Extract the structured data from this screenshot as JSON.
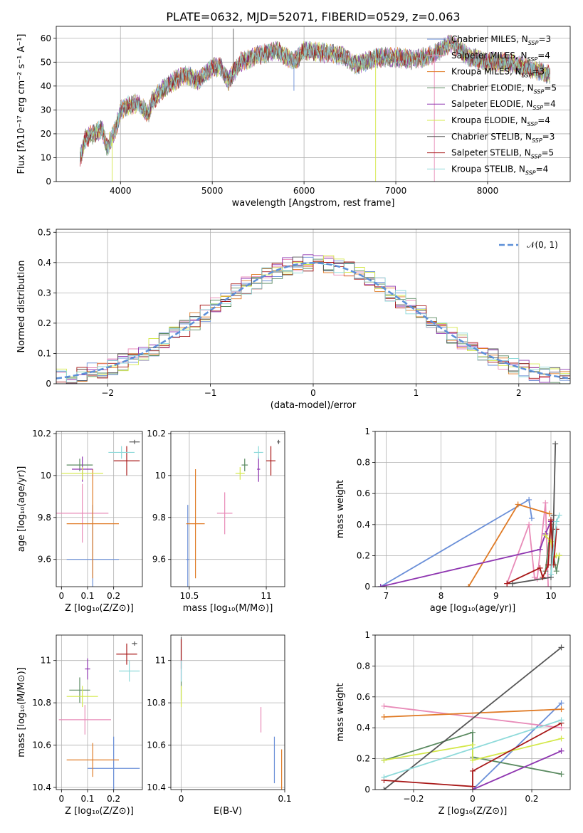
{
  "title": "PLATE=0632, MJD=52071, FIBERID=0529, z=0.063",
  "colors": [
    "#6a8fd8",
    "#e88bb8",
    "#e07b26",
    "#5a8a60",
    "#8e35b0",
    "#d4e84a",
    "#555555",
    "#a81717",
    "#8edada"
  ],
  "legend": [
    {
      "base": "Chabrier MILES, N",
      "sub": "SSP",
      "tail": "=3"
    },
    {
      "base": "Salpeter MILES, N",
      "sub": "SSP",
      "tail": "=4"
    },
    {
      "base": "Kroupa MILES, N",
      "sub": "SSP",
      "tail": "=3"
    },
    {
      "base": "Chabrier ELODIE, N",
      "sub": "SSP",
      "tail": "=5"
    },
    {
      "base": "Salpeter ELODIE, N",
      "sub": "SSP",
      "tail": "=4"
    },
    {
      "base": "Kroupa ELODIE, N",
      "sub": "SSP",
      "tail": "=4"
    },
    {
      "base": "Chabrier STELIB, N",
      "sub": "SSP",
      "tail": "=3"
    },
    {
      "base": "Salpeter STELIB, N",
      "sub": "SSP",
      "tail": "=5"
    },
    {
      "base": "Kroupa STELIB, N",
      "sub": "SSP",
      "tail": "=4"
    }
  ],
  "chart_data": [
    {
      "type": "line",
      "xlabel": "wavelength [Angstrom, rest frame]",
      "ylabel": "Flux [fλ10⁻¹⁷ erg cm⁻² s⁻¹ A⁻¹]",
      "xlim": [
        3300,
        8900
      ],
      "ylim": [
        0,
        65
      ],
      "xticks": [
        4000,
        5000,
        6000,
        7000,
        8000
      ],
      "yticks": [
        0,
        10,
        20,
        30,
        40,
        50,
        60
      ],
      "spectrum_anchor_points": [
        [
          3560,
          10
        ],
        [
          3620,
          18
        ],
        [
          3700,
          20
        ],
        [
          3800,
          22
        ],
        [
          3850,
          14
        ],
        [
          3900,
          18
        ],
        [
          3950,
          22
        ],
        [
          4000,
          30
        ],
        [
          4100,
          32
        ],
        [
          4200,
          33
        ],
        [
          4300,
          28
        ],
        [
          4350,
          34
        ],
        [
          4500,
          40
        ],
        [
          4700,
          45
        ],
        [
          4850,
          42
        ],
        [
          5000,
          48
        ],
        [
          5100,
          48
        ],
        [
          5175,
          42
        ],
        [
          5300,
          50
        ],
        [
          5500,
          53
        ],
        [
          5700,
          55
        ],
        [
          5890,
          50
        ],
        [
          6000,
          55
        ],
        [
          6200,
          54
        ],
        [
          6400,
          53
        ],
        [
          6563,
          49
        ],
        [
          6800,
          52
        ],
        [
          7000,
          52
        ],
        [
          7200,
          51
        ],
        [
          7400,
          53
        ],
        [
          7600,
          58
        ],
        [
          7800,
          52
        ],
        [
          8000,
          50
        ],
        [
          8200,
          50
        ],
        [
          8400,
          48
        ],
        [
          8680,
          45
        ]
      ],
      "series_count": 9
    },
    {
      "type": "area",
      "xlabel": "(data-model)/error",
      "ylabel": "Normed distribution",
      "xlim": [
        -2.5,
        2.5
      ],
      "ylim": [
        0,
        0.51
      ],
      "xticks": [
        -2,
        -1,
        0,
        1,
        2
      ],
      "yticks": [
        0.0,
        0.1,
        0.2,
        0.3,
        0.4,
        0.5
      ],
      "legend": "𝒩(0, 1)",
      "bin_width": 0.1,
      "series_count": 9
    },
    {
      "type": "scatter",
      "xlabel": "Z [log₁₀(Z/Z⊙)]",
      "ylabel": "age  [log₁₀(age/yr)]",
      "xlim": [
        -0.02,
        0.31
      ],
      "ylim": [
        9.47,
        10.21
      ],
      "xticks": [
        0.0,
        0.1,
        0.2
      ],
      "yticks": [
        9.6,
        9.8,
        10.0,
        10.2
      ],
      "points": [
        [
          0.12,
          9.6,
          0.1,
          0.26
        ],
        [
          0.08,
          9.82,
          0.1,
          0.14
        ],
        [
          0.12,
          9.77,
          0.1,
          0.26
        ],
        [
          0.07,
          10.05,
          0.05,
          0.03
        ],
        [
          0.08,
          10.03,
          0.04,
          0.06
        ],
        [
          0.08,
          10.01,
          0.08,
          0.03
        ],
        [
          0.28,
          10.16,
          0.02,
          0.01
        ],
        [
          0.25,
          10.07,
          0.05,
          0.07
        ],
        [
          0.23,
          10.11,
          0.05,
          0.03
        ]
      ]
    },
    {
      "type": "scatter",
      "xlabel": "mass [log₁₀(M/M⊙)]",
      "ylabel": "",
      "xlim": [
        10.38,
        11.12
      ],
      "ylim": [
        9.47,
        10.21
      ],
      "xticks": [
        10.5,
        11.0
      ],
      "yticks": [
        9.6,
        9.8,
        10.0,
        10.2
      ],
      "points": [
        [
          10.49,
          9.6,
          0.01,
          0.26
        ],
        [
          10.73,
          9.82,
          0.05,
          0.1
        ],
        [
          10.54,
          9.77,
          0.06,
          0.26
        ],
        [
          10.86,
          10.05,
          0.02,
          0.03
        ],
        [
          10.95,
          10.03,
          0.01,
          0.06
        ],
        [
          10.83,
          10.01,
          0.03,
          0.03
        ],
        [
          11.08,
          10.16,
          0.01,
          0.01
        ],
        [
          11.03,
          10.07,
          0.03,
          0.07
        ],
        [
          10.95,
          10.11,
          0.03,
          0.03
        ]
      ]
    },
    {
      "type": "line",
      "xlabel": "age  [log₁₀(age/yr)]",
      "ylabel": "mass weight",
      "xlim": [
        6.8,
        10.35
      ],
      "ylim": [
        0,
        1
      ],
      "xticks": [
        7,
        8,
        9,
        10
      ],
      "yticks": [
        0.0,
        0.2,
        0.4,
        0.6,
        0.8,
        1.0
      ],
      "series": [
        {
          "x": [
            6.9,
            9.6,
            9.65
          ],
          "y": [
            0.0,
            0.56,
            0.44
          ]
        },
        {
          "x": [
            9.2,
            9.6,
            9.7,
            9.75,
            9.9,
            9.95
          ],
          "y": [
            0.02,
            0.4,
            0.06,
            0.05,
            0.54,
            0.0
          ]
        },
        {
          "x": [
            8.5,
            9.4,
            9.97
          ],
          "y": [
            0.0,
            0.53,
            0.47
          ]
        },
        {
          "x": [
            9.9,
            10.0,
            10.05,
            10.1,
            10.15
          ],
          "y": [
            0.1,
            0.4,
            0.19,
            0.1,
            0.2
          ]
        },
        {
          "x": [
            6.9,
            9.8,
            9.9,
            10.0
          ],
          "y": [
            0.0,
            0.24,
            0.34,
            0.42
          ]
        },
        {
          "x": [
            9.9,
            10.0,
            10.05,
            10.1,
            10.15
          ],
          "y": [
            0.33,
            0.29,
            0.19,
            0.2,
            0.2
          ]
        },
        {
          "x": [
            9.3,
            10.0,
            10.05,
            10.08
          ],
          "y": [
            0.02,
            0.06,
            0.46,
            0.92
          ]
        },
        {
          "x": [
            9.2,
            9.8,
            9.85,
            9.95,
            10.0,
            10.05,
            10.1
          ],
          "y": [
            0.02,
            0.12,
            0.06,
            0.14,
            0.43,
            0.14,
            0.37
          ]
        },
        {
          "x": [
            10.0,
            10.1,
            10.15
          ],
          "y": [
            0.08,
            0.42,
            0.46
          ]
        }
      ]
    },
    {
      "type": "scatter",
      "xlabel": "Z [log₁₀(Z/Z⊙)]",
      "ylabel": "mass [log₁₀(M/M⊙)]",
      "xlim": [
        -0.02,
        0.31
      ],
      "ylim": [
        10.39,
        11.12
      ],
      "xticks": [
        0.0,
        0.1,
        0.2
      ],
      "yticks": [
        10.4,
        10.6,
        10.8,
        11.0
      ],
      "points": [
        [
          0.2,
          10.49,
          0.1,
          0.15
        ],
        [
          0.09,
          10.72,
          0.1,
          0.07
        ],
        [
          0.12,
          10.53,
          0.1,
          0.08
        ],
        [
          0.07,
          10.86,
          0.04,
          0.06
        ],
        [
          0.1,
          10.96,
          0.01,
          0.05
        ],
        [
          0.08,
          10.83,
          0.06,
          0.05
        ],
        [
          0.28,
          11.08,
          0.01,
          0.01
        ],
        [
          0.25,
          11.03,
          0.04,
          0.05
        ],
        [
          0.26,
          10.95,
          0.04,
          0.05
        ]
      ]
    },
    {
      "type": "scatter",
      "xlabel": "E(B-V)",
      "ylabel": "",
      "xlim": [
        -0.01,
        0.1
      ],
      "ylim": [
        10.39,
        11.12
      ],
      "xticks": [
        0.0,
        0.1
      ],
      "yticks": [
        10.4,
        10.6,
        10.8,
        11.0
      ],
      "points": [
        [
          0.09,
          10.53,
          0,
          0.11
        ],
        [
          0.077,
          10.72,
          0,
          0.06
        ],
        [
          0.097,
          10.48,
          0,
          0.1
        ],
        [
          0.0,
          10.86,
          0,
          0.05
        ],
        [
          0.0,
          10.96,
          0,
          0.05
        ],
        [
          0.0,
          10.83,
          0,
          0.05
        ],
        [
          0.0,
          11.06,
          0,
          0.05
        ],
        [
          0.0,
          11.03,
          0,
          0.07
        ],
        [
          0.0,
          10.95,
          0,
          0.05
        ]
      ]
    },
    {
      "type": "line",
      "xlabel": "Z [log₁₀(Z/Z⊙)]",
      "ylabel": "mass weight",
      "xlim": [
        -0.33,
        0.33
      ],
      "ylim": [
        0,
        1
      ],
      "xticks": [
        -0.2,
        0.0,
        0.2
      ],
      "yticks": [
        0.0,
        0.2,
        0.4,
        0.6,
        0.8,
        1.0
      ],
      "series": [
        {
          "x": [
            0.0,
            0.3
          ],
          "y": [
            0.0,
            0.56
          ]
        },
        {
          "x": [
            -0.3,
            0.3
          ],
          "y": [
            0.54,
            0.4
          ]
        },
        {
          "x": [
            -0.3,
            0.3
          ],
          "y": [
            0.47,
            0.52
          ]
        },
        {
          "x": [
            -0.3,
            0.0,
            0.0,
            0.3
          ],
          "y": [
            0.19,
            0.37,
            0.21,
            0.1
          ]
        },
        {
          "x": [
            0.0,
            0.3
          ],
          "y": [
            0.0,
            0.25
          ]
        },
        {
          "x": [
            -0.3,
            0.0,
            0.0,
            0.3
          ],
          "y": [
            0.19,
            0.29,
            0.19,
            0.33
          ]
        },
        {
          "x": [
            -0.3,
            0.3
          ],
          "y": [
            0.0,
            0.92
          ]
        },
        {
          "x": [
            -0.3,
            0.0,
            0.0,
            0.3
          ],
          "y": [
            0.06,
            0.02,
            0.12,
            0.43
          ]
        },
        {
          "x": [
            -0.3,
            0.3
          ],
          "y": [
            0.08,
            0.45
          ]
        }
      ]
    }
  ]
}
